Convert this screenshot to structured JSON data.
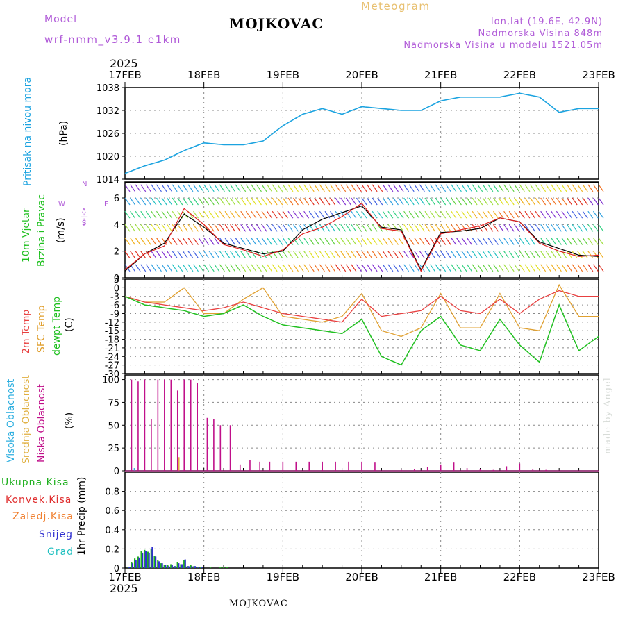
{
  "header": {
    "model_label": "Model",
    "model_name": "wrf-nmm_v3.9.1 e1km",
    "station": "MOJKOVAC",
    "meteogram": "Meteogram",
    "coords": "lon,lat (19.6E, 42.9N)",
    "altitude": "Nadmorska Visina 848m",
    "model_altitude": "Nadmorska Visina u modelu 1521.05m"
  },
  "footer": {
    "station": "MOJKOVAC",
    "credit": "made by Angel"
  },
  "time_axis": {
    "year": "2025",
    "dates": [
      "17FEB",
      "18FEB",
      "19FEB",
      "20FEB",
      "21FEB",
      "22FEB",
      "23FEB"
    ]
  },
  "colors": {
    "pressure": "#1ba3e0",
    "wind_black": "#000000",
    "wind_red": "#e02020",
    "temp_2m": "#e84040",
    "temp_sfc": "#e0a030",
    "dewpoint": "#20c020",
    "cloud_high": "#30b0e0",
    "cloud_mid": "#e0b040",
    "cloud_low": "#c0108a",
    "precip_total": "#20b020",
    "precip_conv": "#e03030",
    "precip_frz": "#f08030",
    "snow": "#3030d0",
    "graupel": "#20c0c0"
  },
  "chart_data": [
    {
      "type": "line",
      "title": "",
      "ylabel": [
        "Pritisak na nivou mora",
        "(hPa)"
      ],
      "ylim": [
        1014,
        1038
      ],
      "yticks": [
        "1038",
        "1032",
        "1026",
        "1020",
        "1014"
      ],
      "x": [
        0,
        6,
        12,
        18,
        24,
        30,
        36,
        42,
        48,
        54,
        60,
        66,
        72,
        78,
        84,
        90,
        96,
        102,
        108,
        114,
        120,
        126,
        132,
        138,
        144
      ],
      "series": [
        {
          "values": [
            1015.5,
            1017.5,
            1019.0,
            1021.5,
            1023.5,
            1023.0,
            1023.0,
            1024.0,
            1028.0,
            1031.0,
            1032.5,
            1031.0,
            1033.0,
            1032.5,
            1032.0,
            1032.0,
            1034.5,
            1035.5,
            1035.5,
            1035.5,
            1036.5,
            1035.5,
            1031.5,
            1032.5,
            1032.5
          ]
        }
      ],
      "grid": true
    },
    {
      "type": "line",
      "ylabel": [
        "10m Vjetar",
        "Brzina i Pravac",
        "(m/s)"
      ],
      "direction_key": [
        "W",
        "<-|->",
        "E",
        "N",
        "S"
      ],
      "ylim": [
        0,
        7.2
      ],
      "yticks": [
        "6",
        "4",
        "2",
        "0"
      ],
      "x": [
        0,
        6,
        12,
        18,
        24,
        30,
        36,
        42,
        48,
        54,
        60,
        66,
        72,
        78,
        84,
        90,
        96,
        102,
        108,
        114,
        120,
        126,
        132,
        138,
        144
      ],
      "series": [
        {
          "values": [
            0.5,
            1.8,
            2.6,
            4.8,
            3.8,
            2.6,
            2.2,
            1.8,
            2.0,
            3.6,
            4.4,
            4.9,
            5.4,
            3.8,
            3.6,
            0.6,
            3.4,
            3.5,
            3.7,
            4.5,
            4.2,
            2.7,
            2.2,
            1.7,
            1.6
          ]
        },
        {
          "values": [
            0.6,
            1.8,
            2.4,
            5.2,
            4.0,
            2.5,
            2.1,
            1.6,
            2.1,
            3.3,
            3.8,
            4.6,
            5.6,
            3.7,
            3.5,
            0.5,
            3.3,
            3.6,
            3.9,
            4.5,
            4.2,
            2.6,
            2.0,
            1.6,
            1.7
          ]
        }
      ],
      "grid": true
    },
    {
      "type": "line",
      "ylabel": [
        "2m Temp",
        "SFC Temp",
        "dewpt Temp",
        "(C)"
      ],
      "ylim": [
        -30,
        3
      ],
      "yticks": [
        "3",
        "0",
        "-3",
        "-6",
        "-9",
        "-12",
        "-15",
        "-18",
        "-21",
        "-24",
        "-27",
        "-30"
      ],
      "x": [
        0,
        6,
        12,
        18,
        24,
        30,
        36,
        42,
        48,
        54,
        60,
        66,
        72,
        78,
        84,
        90,
        96,
        102,
        108,
        114,
        120,
        126,
        132,
        138,
        144
      ],
      "series": [
        {
          "values": [
            -3,
            -5,
            -6,
            -7,
            -8,
            -7,
            -5,
            -7,
            -9,
            -10,
            -11,
            -12,
            -4,
            -10,
            -9,
            -8,
            -3,
            -8,
            -9,
            -4,
            -9,
            -4,
            -1,
            -3,
            -3
          ]
        },
        {
          "values": [
            -3,
            -5,
            -5,
            0,
            -9,
            -9,
            -4,
            0,
            -10,
            -11,
            -12,
            -10,
            -2,
            -15,
            -17,
            -14,
            -2,
            -14,
            -14,
            -2,
            -14,
            -15,
            1,
            -10,
            -10
          ]
        },
        {
          "values": [
            -3,
            -6,
            -7,
            -8,
            -10,
            -9,
            -6,
            -10,
            -13,
            -14,
            -15,
            -16,
            -11,
            -24,
            -27,
            -15,
            -10,
            -20,
            -22,
            -11,
            -20,
            -26,
            -6,
            -22,
            -17
          ]
        }
      ],
      "grid": true
    },
    {
      "type": "bar",
      "ylabel": [
        "Visoka Oblacnost",
        "Srednja Oblacnost",
        "Niska Oblacnost",
        "(%)"
      ],
      "ylim": [
        0,
        105
      ],
      "yticks": [
        "100",
        "75",
        "50",
        "25",
        "0"
      ],
      "x": [
        2,
        4,
        6,
        8,
        10,
        12,
        14,
        16,
        18,
        20,
        22,
        25,
        27,
        29,
        32,
        35,
        38,
        41,
        44,
        48,
        52,
        56,
        60,
        64,
        68,
        72,
        76,
        80,
        84,
        88,
        92,
        96,
        100,
        104,
        108,
        112,
        116,
        120,
        124,
        128,
        132,
        136,
        140
      ],
      "series": [
        {
          "name": "Niska",
          "values": [
            100,
            98,
            100,
            57,
            100,
            100,
            100,
            88,
            100,
            100,
            96,
            58,
            57,
            50,
            50,
            7,
            12,
            10,
            10,
            10,
            10,
            10,
            10,
            10,
            10,
            10,
            9,
            0,
            1,
            2,
            4,
            7,
            9,
            3,
            2,
            1,
            5,
            8,
            2,
            1,
            0,
            0,
            0
          ]
        },
        {
          "name": "Srednja",
          "values": [
            0,
            0,
            0,
            0,
            0,
            0,
            0,
            15,
            0,
            0,
            0,
            0,
            0,
            0,
            0,
            0,
            0,
            0,
            0,
            0,
            0,
            0,
            0,
            0,
            0,
            0,
            0,
            0,
            0,
            0,
            0,
            0,
            0,
            0,
            0,
            0,
            0,
            0,
            0,
            0,
            0,
            0,
            0
          ]
        },
        {
          "name": "Visoka",
          "values": [
            3,
            0,
            0,
            0,
            0,
            0,
            0,
            0,
            0,
            0,
            0,
            0,
            0,
            0,
            0,
            0,
            0,
            0,
            0,
            0,
            0,
            0,
            0,
            0,
            0,
            0,
            0,
            0,
            0,
            0,
            0,
            0,
            0,
            0,
            0,
            0,
            0,
            0,
            0,
            0,
            0,
            0,
            0
          ]
        }
      ],
      "grid": true
    },
    {
      "type": "bar",
      "ylabel": [
        "Ukupna Kisa",
        "Konvek.Kisa",
        "Zaledj.Kisa",
        "Snijeg",
        "Grad",
        "1hr Precip (mm)"
      ],
      "ylim": [
        0,
        1.0
      ],
      "yticks": [
        "0.8",
        "0.6",
        "0.4",
        "0.2",
        "0"
      ],
      "x": [
        1,
        2,
        3,
        4,
        5,
        6,
        7,
        8,
        9,
        10,
        11,
        12,
        13,
        14,
        15,
        16,
        17,
        18,
        19,
        20,
        21,
        22,
        23,
        24,
        25,
        26,
        27,
        28,
        29,
        30,
        31
      ],
      "series": [
        {
          "name": "Ukupna Kisa",
          "values": [
            0.01,
            0.06,
            0.1,
            0.12,
            0.18,
            0.19,
            0.17,
            0.2,
            0.13,
            0.08,
            0.05,
            0.03,
            0.03,
            0.04,
            0.02,
            0.06,
            0.04,
            0.08,
            0.02,
            0.03,
            0.02,
            0.01,
            0.01,
            0,
            0,
            0.01,
            0,
            0,
            0.01,
            0.01,
            0.01
          ]
        },
        {
          "name": "Snijeg",
          "values": [
            0.01,
            0.05,
            0.08,
            0.11,
            0.16,
            0.18,
            0.16,
            0.22,
            0.12,
            0.07,
            0.05,
            0.03,
            0.02,
            0.03,
            0.02,
            0.05,
            0.04,
            0.09,
            0.02,
            0.02,
            0.02,
            0.01,
            0.01,
            0,
            0,
            0,
            0,
            0,
            0,
            0,
            0
          ]
        }
      ],
      "grid": true
    }
  ]
}
